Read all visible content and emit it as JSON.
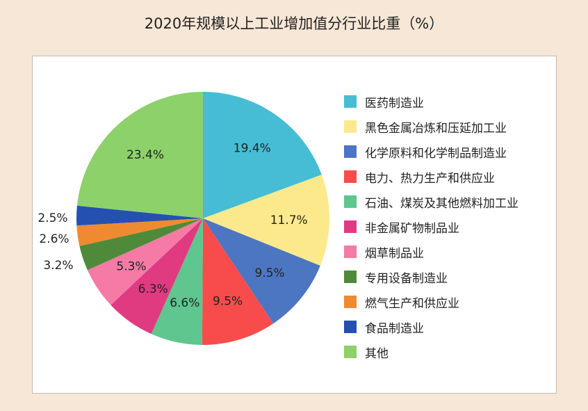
{
  "title": "2020年规模以上工业增加值分行业比重（%）",
  "chart_data": {
    "type": "pie",
    "title": "2020年规模以上工业增加值分行业比重（%）",
    "start": "12 o'clock",
    "direction": "clockwise",
    "legend_position": "right",
    "slices": [
      {
        "name": "医药制造业",
        "value": 19.4,
        "label": "19.4%",
        "color": "#46bdd4"
      },
      {
        "name": "黑色金属冶炼和压延加工业",
        "value": 11.7,
        "label": "11.7%",
        "color": "#fce98c"
      },
      {
        "name": "化学原料和化学制品制造业",
        "value": 9.5,
        "label": "9.5%",
        "color": "#4c76c2"
      },
      {
        "name": "电力、热力生产和供应业",
        "value": 9.5,
        "label": "9.5%",
        "color": "#f84c4c"
      },
      {
        "name": "石油、煤炭及其他燃料加工业",
        "value": 6.6,
        "label": "6.6%",
        "color": "#5ec68e"
      },
      {
        "name": "非金属矿物制品业",
        "value": 6.3,
        "label": "6.3%",
        "color": "#e03a80"
      },
      {
        "name": "烟草制品业",
        "value": 5.3,
        "label": "5.3%",
        "color": "#f57aa6"
      },
      {
        "name": "专用设备制造业",
        "value": 3.2,
        "label": "3.2%",
        "color": "#4f8a3a"
      },
      {
        "name": "燃气生产和供应业",
        "value": 2.6,
        "label": "2.6%",
        "color": "#f08a30"
      },
      {
        "name": "食品制造业",
        "value": 2.5,
        "label": "2.5%",
        "color": "#2451b0"
      },
      {
        "name": "其他",
        "value": 23.4,
        "label": "23.4%",
        "color": "#8cd16a"
      }
    ]
  }
}
